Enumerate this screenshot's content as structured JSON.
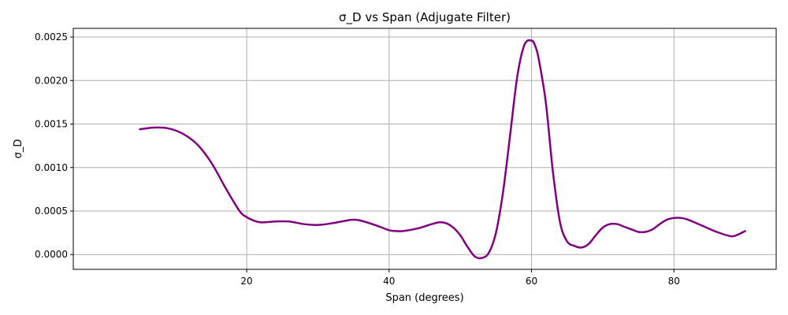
{
  "chart_data": {
    "type": "line",
    "title": "σ_D vs Span (Adjugate Filter)",
    "xlabel": "Span (degrees)",
    "ylabel": "σ_D",
    "xlim": [
      -4.35,
      94.35
    ],
    "ylim": [
      -0.00017,
      0.0026
    ],
    "xticks": [
      20,
      40,
      60,
      80
    ],
    "xtick_labels": [
      "20",
      "40",
      "60",
      "80"
    ],
    "yticks": [
      0.0,
      0.0005,
      0.001,
      0.0015,
      0.002,
      0.0025
    ],
    "ytick_labels": [
      "0.0000",
      "0.0005",
      "0.0010",
      "0.0015",
      "0.0020",
      "0.0025"
    ],
    "grid": true,
    "series": [
      {
        "color": "#800080",
        "x": [
          5,
          7,
          9,
          11,
          13,
          15,
          17,
          19,
          20,
          21,
          22,
          24,
          26,
          28,
          30,
          32,
          34,
          35,
          36,
          38,
          40,
          41,
          42,
          44,
          46,
          47,
          48,
          49,
          50,
          51,
          52,
          53,
          54,
          55,
          56,
          57,
          58,
          59,
          60,
          60.5,
          61,
          62,
          63,
          64,
          65,
          66,
          67,
          68,
          69,
          70,
          71,
          72,
          73,
          74,
          75,
          76,
          77,
          78,
          79,
          80,
          81,
          82,
          84,
          86,
          88,
          89,
          90
        ],
        "y": [
          0.00144,
          0.00146,
          0.00145,
          0.00139,
          0.00127,
          0.00106,
          0.00077,
          0.0005,
          0.00043,
          0.00039,
          0.00037,
          0.00038,
          0.00038,
          0.00035,
          0.00034,
          0.00036,
          0.00039,
          0.0004,
          0.00039,
          0.00034,
          0.00028,
          0.00027,
          0.00027,
          0.0003,
          0.00035,
          0.00037,
          0.00036,
          0.00031,
          0.00022,
          9e-05,
          -2e-05,
          -4e-05,
          2e-05,
          0.00025,
          0.00072,
          0.00138,
          0.00205,
          0.00241,
          0.00246,
          0.0024,
          0.00225,
          0.00175,
          0.00095,
          0.00037,
          0.00015,
          0.0001,
          8e-05,
          0.00012,
          0.00022,
          0.00031,
          0.00035,
          0.00035,
          0.00032,
          0.00029,
          0.00026,
          0.00026,
          0.00029,
          0.00035,
          0.0004,
          0.00042,
          0.00042,
          0.0004,
          0.00033,
          0.00026,
          0.00021,
          0.00023,
          0.00027
        ]
      }
    ]
  }
}
